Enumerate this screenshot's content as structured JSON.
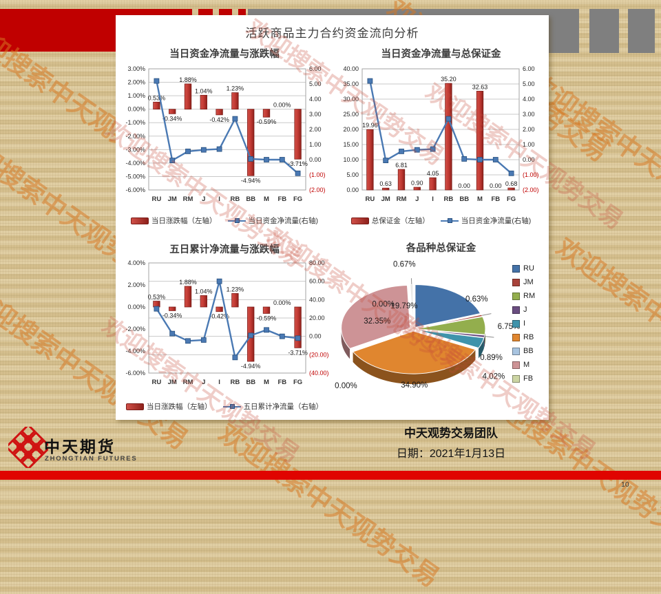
{
  "slide": {
    "title": "活跃商品主力合约资金流向分析",
    "watermark_text": "欢迎搜索中天观势交易",
    "footer": {
      "team": "中天观势交易团队",
      "date_label": "日期：2021年1月13日",
      "page_number": "10"
    },
    "logo": {
      "cn": "中天期货",
      "en": "ZHONGTIAN FUTURES"
    }
  },
  "colors": {
    "bar_red": "#b5312c",
    "line_blue": "#4a79b3",
    "negative_tick_red": "#c00000",
    "band_red": "#c00000",
    "band_gray": "#7f7f7f",
    "footer_bar_red": "#e00400",
    "background_tan": "#d7c395"
  },
  "chart_data": [
    {
      "id": "daily-net-flow-vs-change",
      "type": "bar",
      "title": "当日资金净流量与涨跌幅",
      "categories": [
        "RU",
        "JM",
        "RM",
        "J",
        "I",
        "RB",
        "BB",
        "M",
        "FB",
        "FG"
      ],
      "series": [
        {
          "name": "当日涨跌幅（左轴）",
          "type": "bar",
          "axis": "left",
          "values": [
            0.53,
            -0.34,
            1.88,
            1.04,
            -0.42,
            1.23,
            -4.94,
            -0.59,
            0,
            -3.71
          ],
          "labels": [
            "0.53%",
            "-0.34%",
            "1.88%",
            "1.04%",
            "-0.42%",
            "1.23%",
            "-4.94%",
            "-0.59%",
            "0.00%",
            "-3.71%"
          ]
        },
        {
          "name": "当日资金净流量(右轴)",
          "type": "line",
          "axis": "right",
          "values": [
            5.2,
            -0.05,
            0.55,
            0.65,
            0.7,
            2.7,
            0.05,
            0,
            0,
            -0.9
          ]
        }
      ],
      "left_axis": {
        "min": -6,
        "max": 3,
        "ticks": [
          "3.00%",
          "2.00%",
          "1.00%",
          "0.00%",
          "-1.00%",
          "-2.00%",
          "-3.00%",
          "-4.00%",
          "-5.00%",
          "-6.00%"
        ]
      },
      "right_axis": {
        "min": -2,
        "max": 6,
        "ticks": [
          "6.00",
          "5.00",
          "4.00",
          "3.00",
          "2.00",
          "1.00",
          "0.00",
          "(1.00)",
          "(2.00)"
        ]
      },
      "grid_axis": "left",
      "legend_position": "bottom"
    },
    {
      "id": "daily-net-flow-vs-margin",
      "type": "bar",
      "title": "当日资金净流量与总保证金",
      "categories": [
        "RU",
        "JM",
        "RM",
        "J",
        "I",
        "RB",
        "BB",
        "M",
        "FB",
        "FG"
      ],
      "series": [
        {
          "name": "总保证金（左轴）",
          "type": "bar",
          "axis": "left",
          "values": [
            19.96,
            0.63,
            6.81,
            0.9,
            4.05,
            35.2,
            0,
            32.63,
            0,
            0.68
          ],
          "labels": [
            "19.96",
            "0.63",
            "6.81",
            "0.90",
            "4.05",
            "35.20",
            "0.00",
            "32.63",
            "0.00",
            "0.68"
          ]
        },
        {
          "name": "当日资金净流量(右轴)",
          "type": "line",
          "axis": "right",
          "values": [
            5.2,
            -0.05,
            0.55,
            0.65,
            0.7,
            2.7,
            0.05,
            0,
            0,
            -0.9
          ]
        }
      ],
      "left_axis": {
        "min": 0,
        "max": 40,
        "ticks": [
          "40.00",
          "35.00",
          "30.00",
          "25.00",
          "20.00",
          "15.00",
          "10.00",
          "5.00",
          "0.00"
        ]
      },
      "right_axis": {
        "min": -2,
        "max": 6,
        "ticks": [
          "6.00",
          "5.00",
          "4.00",
          "3.00",
          "2.00",
          "1.00",
          "0.00",
          "(1.00)",
          "(2.00)"
        ]
      },
      "grid_axis": "left",
      "legend_position": "bottom"
    },
    {
      "id": "five-day-flow-vs-change",
      "type": "bar",
      "title": "五日累计净流量与涨跌幅",
      "categories": [
        "RU",
        "JM",
        "RM",
        "J",
        "I",
        "RB",
        "BB",
        "M",
        "FB",
        "FG"
      ],
      "series": [
        {
          "name": "当日涨跌幅（左轴）",
          "type": "bar",
          "axis": "left",
          "values": [
            0.53,
            -0.34,
            1.88,
            1.04,
            -0.42,
            1.23,
            -4.94,
            -0.59,
            0,
            -3.71
          ],
          "labels": [
            "0.53%",
            "-0.34%",
            "1.88%",
            "1.04%",
            "-0.42%",
            "1.23%",
            "-4.94%",
            "-0.59%",
            "0.00%",
            "-3.71%"
          ]
        },
        {
          "name": "五日累计净流量（右轴）",
          "type": "line",
          "axis": "right",
          "values": [
            30,
            3,
            -5,
            -4,
            60,
            -23,
            1,
            7,
            0,
            -2
          ]
        }
      ],
      "left_axis": {
        "min": -6,
        "max": 4,
        "ticks": [
          "4.00%",
          "2.00%",
          "0.00%",
          "-2.00%",
          "-4.00%",
          "-6.00%"
        ]
      },
      "right_axis": {
        "min": -40,
        "max": 80,
        "ticks": [
          "80.00",
          "60.00",
          "40.00",
          "20.00",
          "0.00",
          "(20.00)",
          "(40.00)"
        ]
      },
      "grid_axis": "right",
      "legend_position": "bottom"
    },
    {
      "id": "margin-by-variety-pie",
      "type": "pie",
      "title": "各品种总保证金",
      "categories": [
        "RU",
        "JM",
        "RM",
        "J",
        "I",
        "RB",
        "BB",
        "M",
        "FB",
        "FG"
      ],
      "values": [
        19.79,
        0.63,
        6.75,
        0.89,
        4.02,
        34.9,
        0.0,
        32.35,
        0.0,
        0.67
      ],
      "labels": [
        "19.79%",
        "0.63%",
        "6.75%",
        "0.89%",
        "4.02%",
        "34.90%",
        "0.00%",
        "32.35%",
        "0.00%",
        "0.67%"
      ],
      "slice_colors": [
        "#4472a8",
        "#a8423a",
        "#93ae4d",
        "#6a4d80",
        "#3f93ab",
        "#e0862f",
        "#a8c4e0",
        "#cd9396",
        "#ccd5a3",
        "#e9e9e7"
      ],
      "legend_visible": [
        "RU",
        "JM",
        "RM",
        "J",
        "I",
        "RB",
        "BB",
        "M",
        "FB"
      ],
      "legend_position": "right"
    }
  ]
}
